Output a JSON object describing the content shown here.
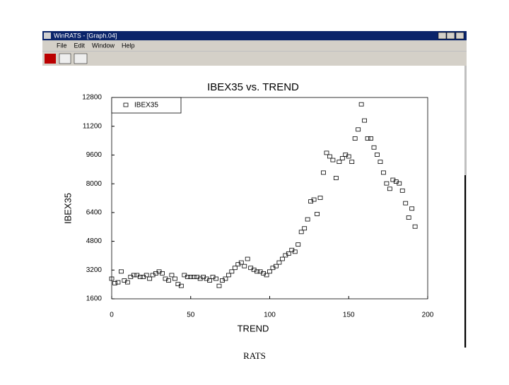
{
  "window": {
    "title": "WinRATS - [Graph.04]",
    "menu": [
      "File",
      "Edit",
      "Window",
      "Help"
    ]
  },
  "caption": "RATS",
  "chart_data": {
    "type": "scatter",
    "title": "IBEX35 vs. TREND",
    "x_label": "TREND",
    "y_label": "IBEX35",
    "series": [
      {
        "name": "IBEX35",
        "color": "#000000",
        "x": [
          0,
          2,
          4,
          6,
          8,
          10,
          12,
          14,
          16,
          18,
          20,
          22,
          24,
          26,
          28,
          30,
          32,
          34,
          36,
          38,
          40,
          42,
          44,
          46,
          48,
          50,
          52,
          54,
          56,
          58,
          60,
          62,
          64,
          66,
          68,
          70,
          72,
          74,
          76,
          78,
          80,
          82,
          84,
          86,
          88,
          90,
          92,
          94,
          96,
          98,
          100,
          102,
          104,
          106,
          108,
          110,
          112,
          114,
          116,
          118,
          120,
          122,
          124,
          126,
          128,
          130,
          132,
          134,
          136,
          138,
          140,
          142,
          144,
          146,
          148,
          150,
          152,
          154,
          156,
          158,
          160,
          162,
          164,
          166,
          168,
          170,
          172,
          174,
          176,
          178,
          180,
          182,
          184,
          186,
          188,
          190,
          192
        ],
        "values": [
          2700,
          2450,
          2500,
          3100,
          2600,
          2500,
          2800,
          2900,
          2900,
          2800,
          2800,
          2900,
          2700,
          2900,
          3000,
          3100,
          3000,
          2700,
          2600,
          2900,
          2700,
          2400,
          2300,
          2900,
          2800,
          2800,
          2800,
          2800,
          2700,
          2800,
          2700,
          2600,
          2800,
          2700,
          2300,
          2600,
          2700,
          2900,
          3100,
          3300,
          3500,
          3600,
          3400,
          3800,
          3300,
          3200,
          3100,
          3100,
          3000,
          2900,
          3100,
          3300,
          3400,
          3600,
          3800,
          4000,
          4100,
          4300,
          4200,
          4600,
          5300,
          5500,
          6000,
          7000,
          7100,
          6300,
          7200,
          8600,
          9700,
          9500,
          9300,
          8300,
          9200,
          9400,
          9600,
          9500,
          9200,
          10500,
          11000,
          12400,
          11500,
          10500,
          10500,
          10000,
          9600,
          9200,
          8600,
          8000,
          7700,
          8200,
          8100,
          8000,
          7600,
          6900,
          6100,
          6600,
          5600
        ]
      }
    ],
    "xlim": [
      0,
      200
    ],
    "xticks": [
      0,
      50,
      100,
      150,
      200
    ],
    "ylim": [
      1600,
      12800
    ],
    "yticks": [
      1600,
      3200,
      4800,
      6400,
      8000,
      9600,
      11200,
      12800
    ],
    "legend": "upper left"
  }
}
